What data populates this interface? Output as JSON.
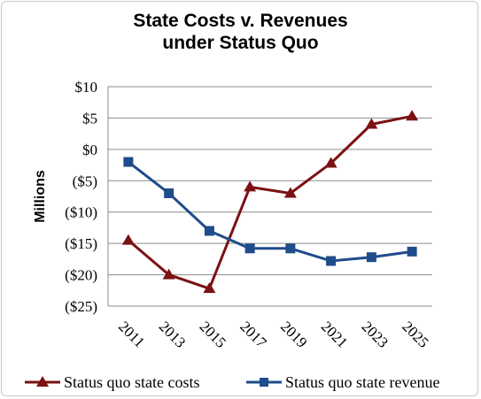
{
  "chart_data": {
    "type": "line",
    "title": [
      "State Costs v. Revenues",
      "under Status Quo"
    ],
    "ylabel": "Millions",
    "xlabel": "",
    "categories": [
      "2011",
      "2013",
      "2015",
      "2017",
      "2019",
      "2021",
      "2023",
      "2025"
    ],
    "ylim": [
      -25,
      10
    ],
    "yticks": [
      10,
      5,
      0,
      -5,
      -10,
      -15,
      -20,
      -25
    ],
    "ytick_labels": [
      "$10",
      "$5",
      "$0",
      "($5)",
      "($10)",
      "($15)",
      "($20)",
      "($25)"
    ],
    "grid": true,
    "legend_position": "bottom",
    "series": [
      {
        "name": "Status quo state costs",
        "color": "#7b1113",
        "marker": "triangle",
        "values": [
          -14.5,
          -20,
          -22.2,
          -6,
          -7,
          -2.2,
          4,
          5.3
        ]
      },
      {
        "name": "Status quo state revenue",
        "color": "#1f4c8b",
        "marker": "square",
        "values": [
          -2,
          -7,
          -13,
          -15.8,
          -15.8,
          -17.8,
          -17.2,
          -16.3
        ]
      }
    ]
  }
}
